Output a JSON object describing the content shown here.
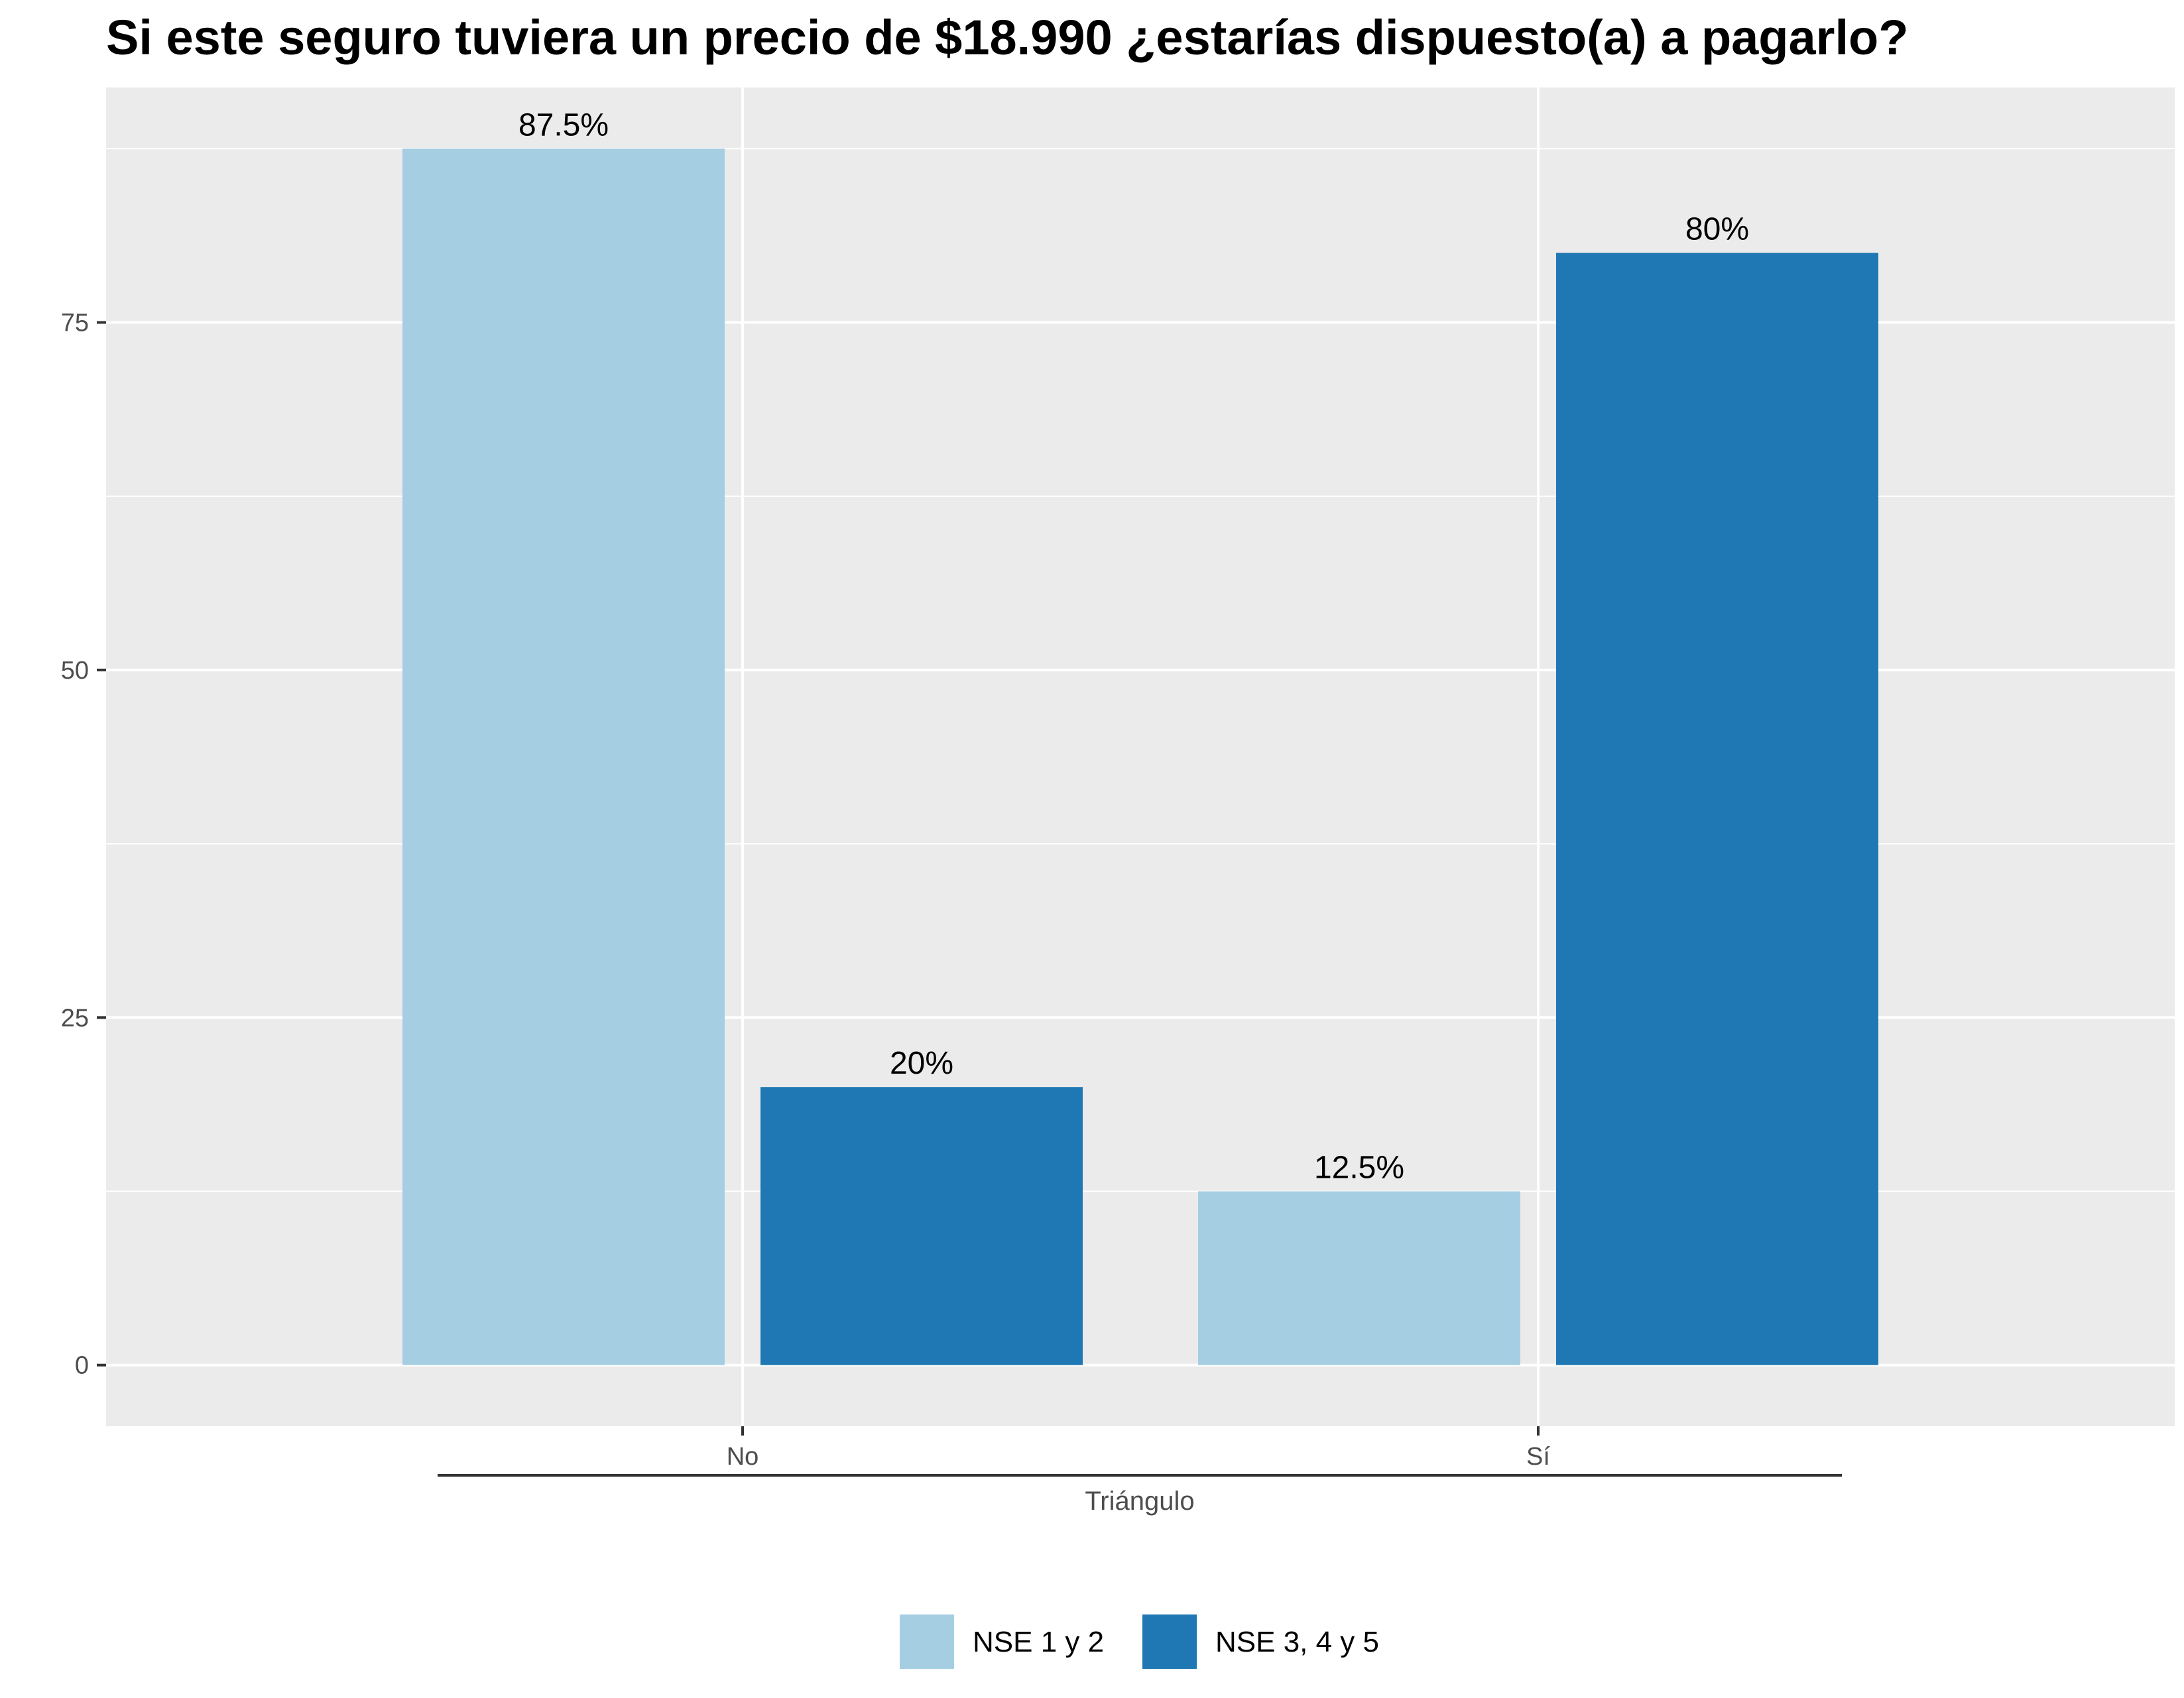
{
  "chart_data": {
    "type": "bar",
    "title": "Si este seguro tuviera un precio de $18.990 ¿estarías dispuesto(a) a pagarlo?",
    "xlabel": "",
    "ylabel": "",
    "categories": [
      "No",
      "Sí"
    ],
    "group_label": "Triángulo",
    "series": [
      {
        "name": "NSE 1 y 2",
        "color": "#a6cee3",
        "values": [
          87.5,
          12.5
        ],
        "labels": [
          "87.5%",
          "12.5%"
        ]
      },
      {
        "name": "NSE 3, 4 y 5",
        "color": "#1f78b4",
        "values": [
          20,
          80
        ],
        "labels": [
          "20%",
          "80%"
        ]
      }
    ],
    "yticks": [
      0,
      25,
      50,
      75
    ],
    "ylim": [
      -4.4,
      91.9
    ],
    "grid": true,
    "legend_position": "bottom"
  }
}
